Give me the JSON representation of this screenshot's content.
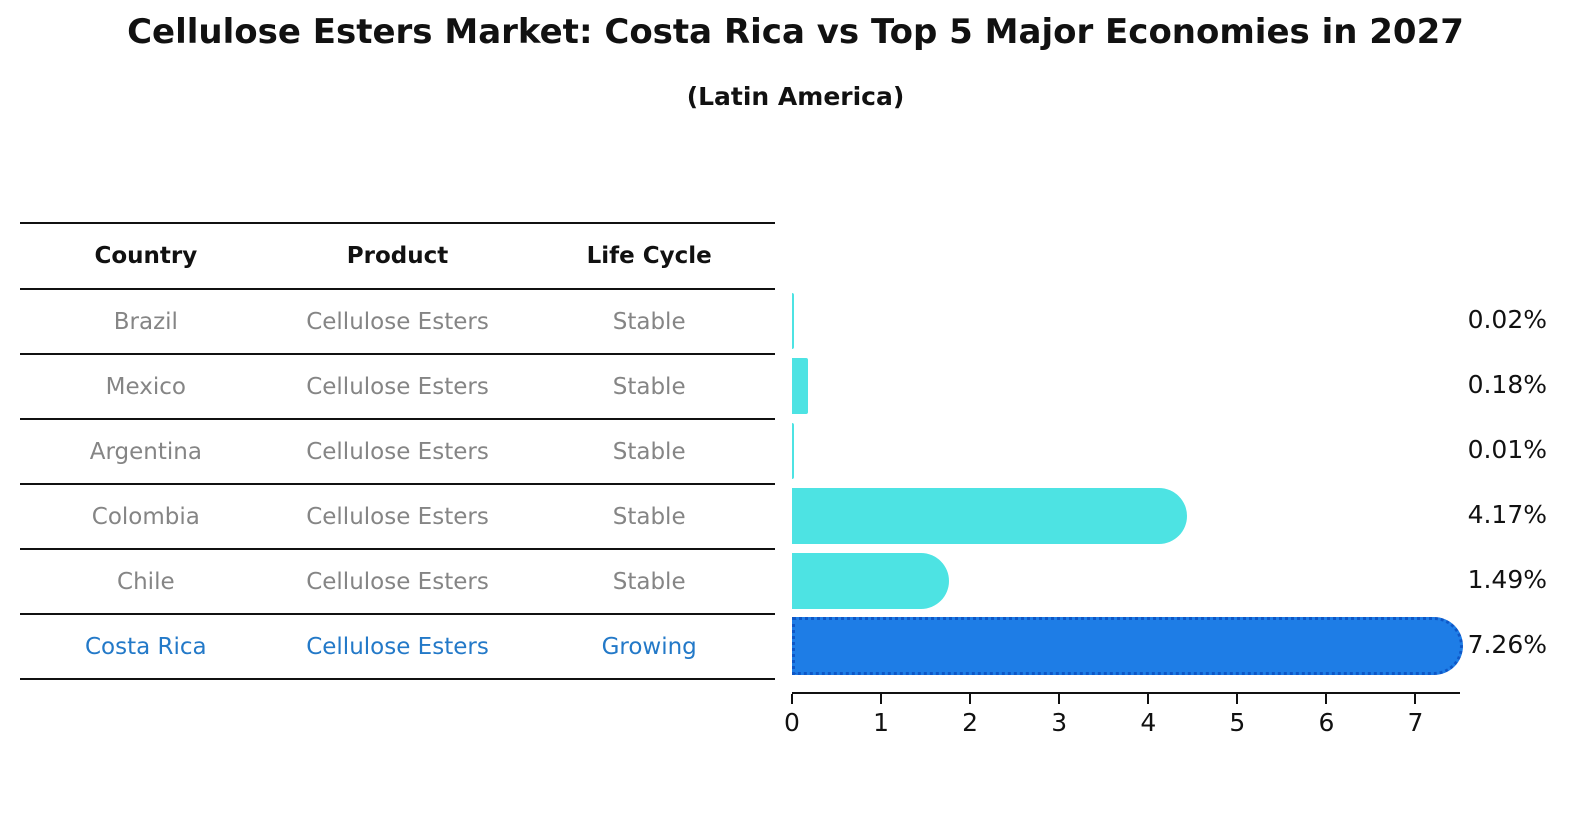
{
  "title": "Cellulose Esters Market: Costa Rica vs Top 5 Major Economies in 2027",
  "subtitle": "(Latin America)",
  "table": {
    "headers": [
      "Country",
      "Product",
      "Life Cycle"
    ],
    "rows": [
      {
        "country": "Brazil",
        "product": "Cellulose Esters",
        "life_cycle": "Stable",
        "highlight": false
      },
      {
        "country": "Mexico",
        "product": "Cellulose Esters",
        "life_cycle": "Stable",
        "highlight": false
      },
      {
        "country": "Argentina",
        "product": "Cellulose Esters",
        "life_cycle": "Stable",
        "highlight": false
      },
      {
        "country": "Colombia",
        "product": "Cellulose Esters",
        "life_cycle": "Stable",
        "highlight": false
      },
      {
        "country": "Chile",
        "product": "Cellulose Esters",
        "life_cycle": "Stable",
        "highlight": false
      },
      {
        "country": "Costa Rica",
        "product": "Cellulose Esters",
        "life_cycle": "Growing",
        "highlight": true
      }
    ]
  },
  "chart_data": {
    "type": "bar",
    "orientation": "horizontal",
    "title": "Cellulose Esters Market: Costa Rica vs Top 5 Major Economies in 2027",
    "subtitle": "(Latin America)",
    "categories": [
      "Brazil",
      "Mexico",
      "Argentina",
      "Colombia",
      "Chile",
      "Costa Rica"
    ],
    "values": [
      0.02,
      0.18,
      0.01,
      4.17,
      1.49,
      7.26
    ],
    "value_labels": [
      "0.02%",
      "0.18%",
      "0.01%",
      "4.17%",
      "1.49%",
      "7.26%"
    ],
    "xlabel": "",
    "ylabel": "",
    "xticks": [
      0,
      1,
      2,
      3,
      4,
      5,
      6,
      7
    ],
    "xlim": [
      0,
      7.5
    ],
    "grid": false,
    "legend": false,
    "highlight_index": 5,
    "colors": {
      "bar": "#4de3e3",
      "highlight_bar": "#1e7de6",
      "highlight_border": "#0e57c7",
      "highlight_text": "#2379c8",
      "row_text": "#858585",
      "axis": "#111111"
    }
  }
}
